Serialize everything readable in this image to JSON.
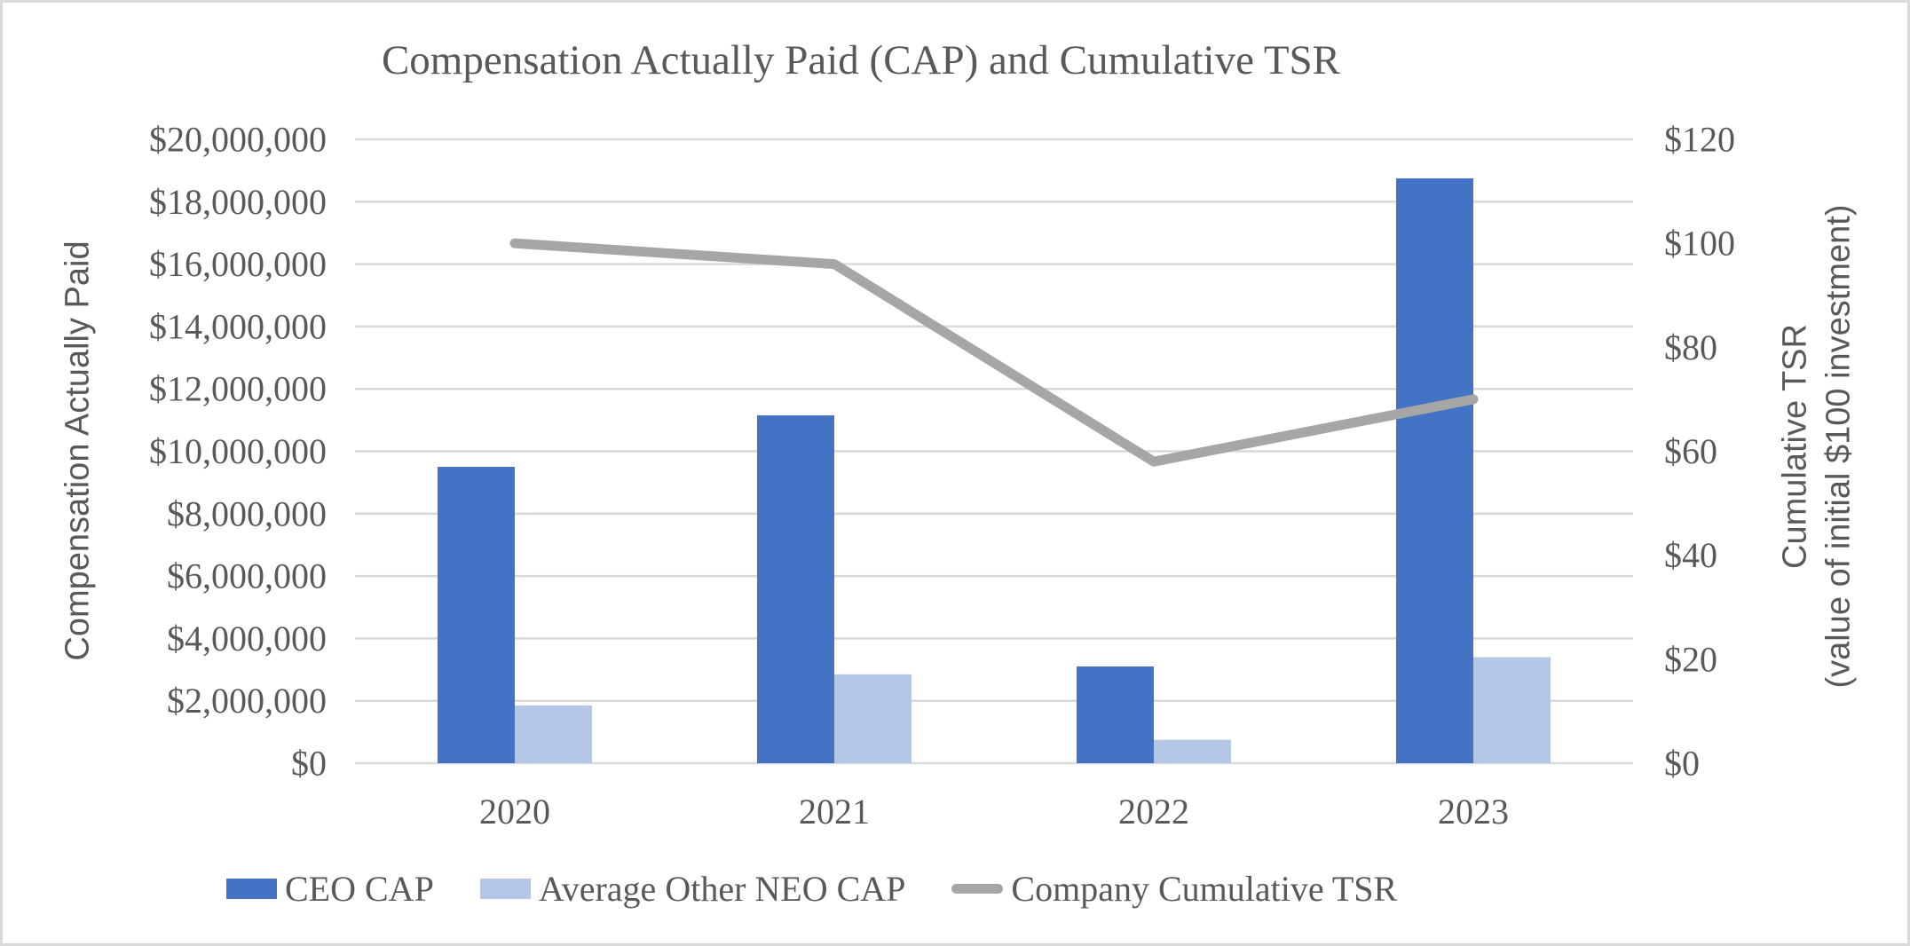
{
  "title": "Compensation Actually Paid (CAP) and Cumulative TSR",
  "axes": {
    "left_title": "Compensation Actually Paid",
    "right_title_line1": "Cumulative TSR",
    "right_title_line2": "(value of initial $100 investment)"
  },
  "colors": {
    "ceo_bar": "#4472C4",
    "neo_bar": "#B4C7E7",
    "tsr_line": "#A6A6A6",
    "grid": "#D9D9D9",
    "text": "#595959",
    "border": "#D9D9D9"
  },
  "legend": {
    "items": [
      {
        "label": "CEO CAP",
        "color": "#4472C4",
        "shape": "bar"
      },
      {
        "label": "Average Other NEO CAP",
        "color": "#B4C7E7",
        "shape": "bar"
      },
      {
        "label": "Company Cumulative TSR",
        "color": "#A6A6A6",
        "shape": "line"
      }
    ]
  },
  "chart_data": {
    "type": "combo",
    "subtypes": [
      "bar",
      "line"
    ],
    "title": "Compensation Actually Paid (CAP) and Cumulative TSR",
    "categories": [
      "2020",
      "2021",
      "2022",
      "2023"
    ],
    "series": [
      {
        "name": "CEO CAP",
        "type": "bar",
        "axis": "left",
        "color": "#4472C4",
        "values": [
          9500000,
          11150000,
          3100000,
          18750000
        ]
      },
      {
        "name": "Average Other NEO CAP",
        "type": "bar",
        "axis": "left",
        "color": "#B4C7E7",
        "values": [
          1850000,
          2850000,
          750000,
          3400000
        ]
      },
      {
        "name": "Company Cumulative TSR",
        "type": "line",
        "axis": "right",
        "color": "#A6A6A6",
        "values": [
          100,
          96,
          58,
          70
        ]
      }
    ],
    "left_axis": {
      "label": "Compensation Actually Paid",
      "min": 0,
      "max": 20000000,
      "step": 2000000,
      "ticks": [
        "$20,000,000",
        "$18,000,000",
        "$16,000,000",
        "$14,000,000",
        "$12,000,000",
        "$10,000,000",
        "$8,000,000",
        "$6,000,000",
        "$4,000,000",
        "$2,000,000",
        "$0"
      ]
    },
    "right_axis": {
      "label": "Cumulative TSR (value of initial $100 investment)",
      "min": 0,
      "max": 120,
      "step": 20,
      "ticks": [
        "$120",
        "$100",
        "$80",
        "$60",
        "$40",
        "$20",
        "$0"
      ]
    },
    "grid": true,
    "legend_position": "bottom"
  }
}
